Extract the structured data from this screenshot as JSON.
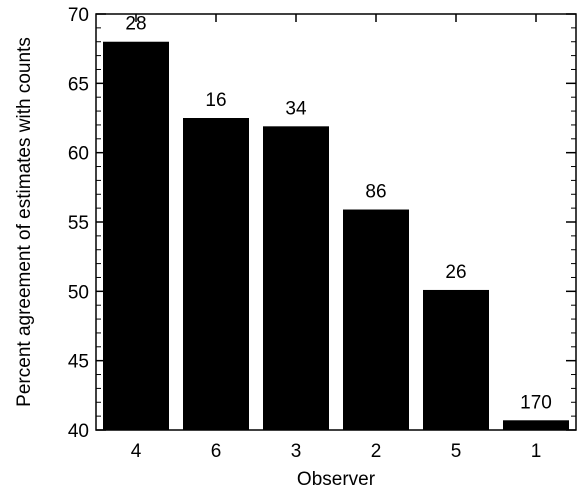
{
  "chart_data": {
    "type": "bar",
    "xlabel": "Observer",
    "ylabel": "Percent agreement of estimates with counts",
    "ylim": [
      40,
      70
    ],
    "yticks": [
      40,
      45,
      50,
      55,
      60,
      65,
      70
    ],
    "grid": false,
    "categories": [
      "4",
      "6",
      "3",
      "2",
      "5",
      "1"
    ],
    "values": [
      68,
      62.5,
      61.9,
      55.9,
      50.1,
      40.7
    ],
    "data_labels": [
      "28",
      "16",
      "34",
      "86",
      "26",
      "170"
    ],
    "bar_color": "#000000"
  }
}
